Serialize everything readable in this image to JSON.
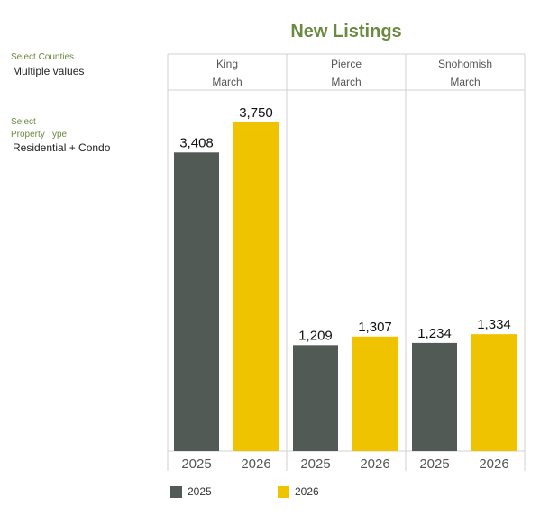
{
  "filters": {
    "counties_label": "Select Counties",
    "counties_value": "Multiple values",
    "property_label_line1": "Select",
    "property_label_line2": "Property Type",
    "property_value": "Residential + Condo"
  },
  "colors": {
    "2025": "#525a56",
    "2026": "#efc300",
    "title": "#6a8a3f",
    "grid": "#d0d0d0"
  },
  "chart_data": {
    "type": "bar",
    "title": "New Listings",
    "period": "March",
    "series_names": [
      "2025",
      "2026"
    ],
    "groups": [
      {
        "county": "King",
        "period": "March",
        "values": [
          3408,
          3750
        ],
        "labels": [
          "3,408",
          "3,750"
        ]
      },
      {
        "county": "Pierce",
        "period": "March",
        "values": [
          1209,
          1307
        ],
        "labels": [
          "1,209",
          "1,307"
        ]
      },
      {
        "county": "Snohomish",
        "period": "March",
        "values": [
          1234,
          1334
        ],
        "labels": [
          "1,234",
          "1,334"
        ]
      }
    ],
    "ylim": [
      0,
      4000
    ],
    "legend": [
      {
        "name": "2025"
      },
      {
        "name": "2026"
      }
    ],
    "legend_position": "bottom"
  }
}
